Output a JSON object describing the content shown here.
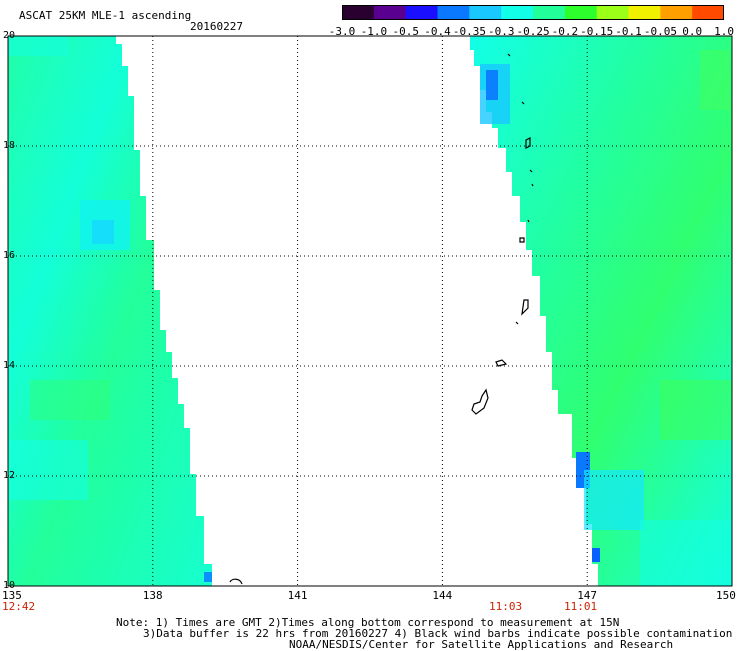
{
  "header": {
    "title": "ASCAT 25KM MLE-1 ascending",
    "date": "20160227"
  },
  "colorbar": {
    "labels": [
      "-3.0",
      "-1.0",
      "-0.5",
      "-0.4",
      "-0.35",
      "-0.3",
      "-0.25",
      "-0.2",
      "-0.15",
      "-0.1",
      "-0.05",
      "0.0",
      "1.0"
    ],
    "colors": [
      "#2a0030",
      "#5a0090",
      "#1a10ff",
      "#0a78ff",
      "#18c8ff",
      "#12ffe8",
      "#22ff9a",
      "#2cff2c",
      "#9cff18",
      "#f0f000",
      "#ffa000",
      "#ff4a00"
    ]
  },
  "axes": {
    "lon_labels": [
      "135",
      "138",
      "141",
      "144",
      "147",
      "150"
    ],
    "lat_labels": [
      "20",
      "18",
      "16",
      "14",
      "12",
      "10"
    ],
    "lon_range": [
      135,
      150
    ],
    "lat_range": [
      10,
      20
    ]
  },
  "swath_times": {
    "left": "12:42",
    "right_a": "11:03",
    "right_b": "11:01"
  },
  "notes": {
    "line1": "Note: 1) Times are GMT 2)Times along bottom correspond to measurement at 15N",
    "line2": "3)Data buffer is 22 hrs from 20160227 4) Black wind barbs indicate possible contamination",
    "line3": "NOAA/NESDIS/Center for Satellite Applications and Research"
  },
  "colors": {
    "cyan": "#12ffe8",
    "green": "#22ff9a",
    "blue": "#0a78ff",
    "grid": "#000000"
  }
}
